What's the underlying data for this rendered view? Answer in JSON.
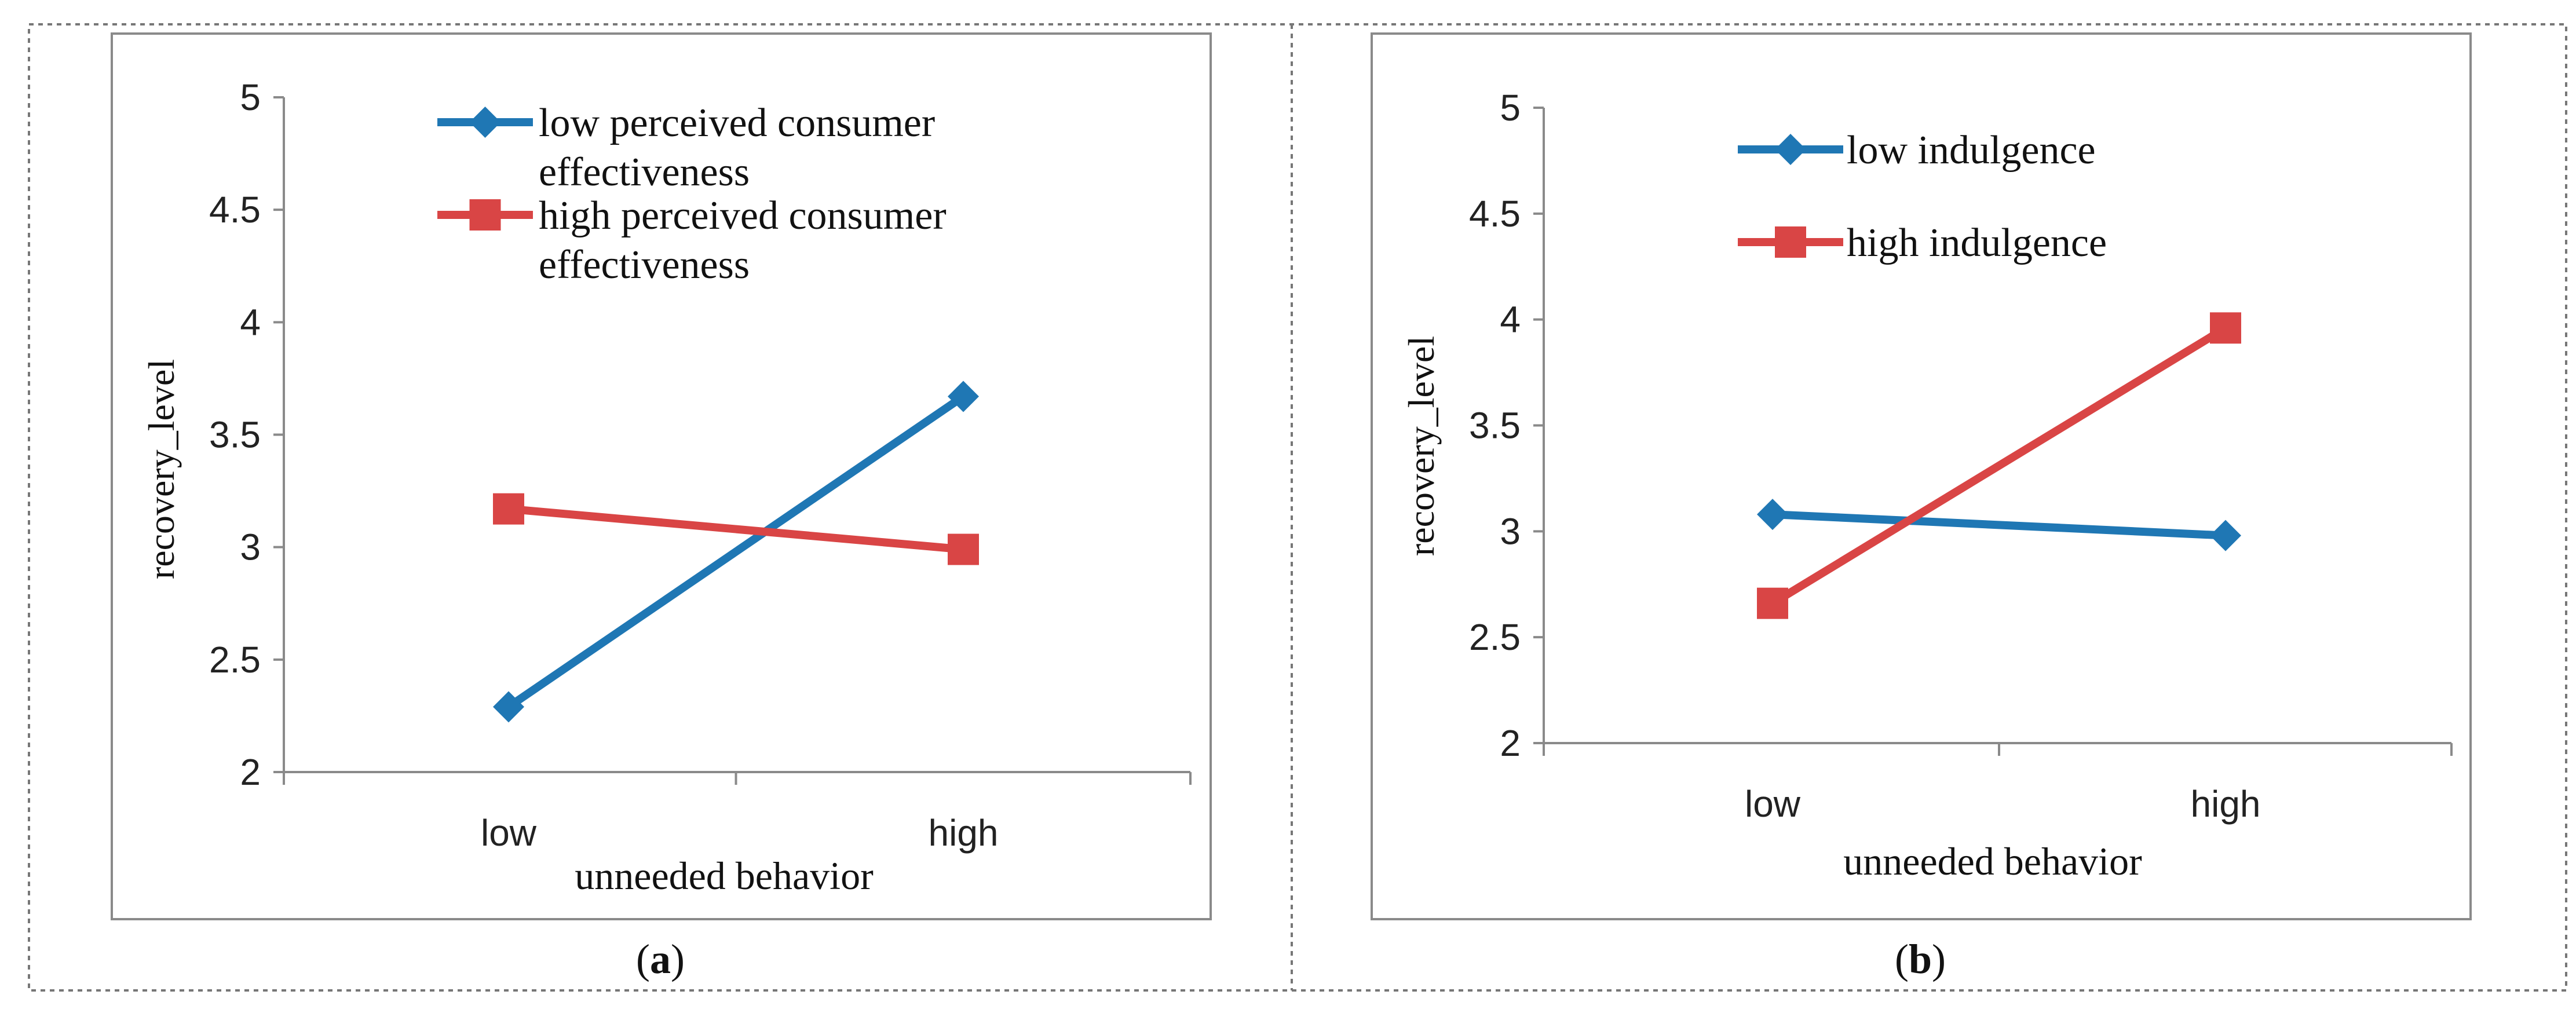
{
  "chart_data": [
    {
      "type": "line",
      "panel_label": "a",
      "xlabel": "unneeded behavior",
      "ylabel": "recovery_level",
      "categories": [
        "low",
        "high"
      ],
      "ylim": [
        2,
        5
      ],
      "yticks": [
        "2",
        "2.5",
        "3",
        "3.5",
        "4",
        "4.5",
        "5"
      ],
      "legend_position": "top",
      "series": [
        {
          "name": "low perceived consumer effectiveness",
          "legend_lines": [
            "low perceived consumer",
            "effectiveness"
          ],
          "marker": "diamond",
          "color": "#1f77b4",
          "values": [
            2.29,
            3.67
          ]
        },
        {
          "name": "high perceived consumer effectiveness",
          "legend_lines": [
            "high perceived consumer",
            "effectiveness"
          ],
          "marker": "square",
          "color": "#d94545",
          "values": [
            3.17,
            2.99
          ]
        }
      ]
    },
    {
      "type": "line",
      "panel_label": "b",
      "xlabel": "unneeded behavior",
      "ylabel": "recovery_level",
      "categories": [
        "low",
        "high"
      ],
      "ylim": [
        2,
        5
      ],
      "yticks": [
        "2",
        "2.5",
        "3",
        "3.5",
        "4",
        "4.5",
        "5"
      ],
      "legend_position": "top-left",
      "series": [
        {
          "name": "low indulgence",
          "legend_lines": [
            "low indulgence"
          ],
          "marker": "diamond",
          "color": "#1f77b4",
          "values": [
            3.08,
            2.98
          ]
        },
        {
          "name": "high indulgence",
          "legend_lines": [
            "high indulgence"
          ],
          "marker": "square",
          "color": "#d94545",
          "values": [
            2.66,
            3.96
          ]
        }
      ]
    }
  ]
}
